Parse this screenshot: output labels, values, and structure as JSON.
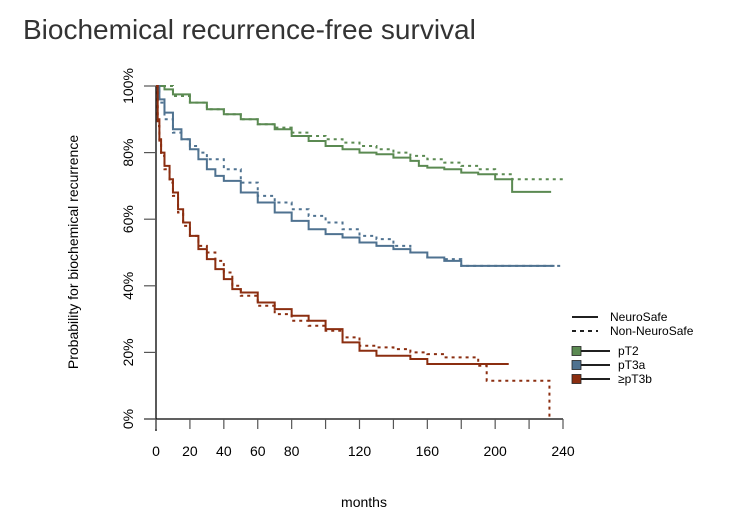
{
  "chart_data": {
    "type": "line",
    "title": "Biochemical recurrence-free survival",
    "xlabel": "months",
    "ylabel": "Probability for biochemical recurrence",
    "xlim": [
      0,
      240
    ],
    "ylim": [
      0,
      100
    ],
    "x_ticks": [
      0,
      20,
      40,
      60,
      80,
      100,
      120,
      140,
      160,
      180,
      200,
      220,
      240
    ],
    "x_tick_labels": [
      "0",
      "20",
      "40",
      "60",
      "80",
      "",
      "120",
      "",
      "160",
      "",
      "200",
      "",
      "240"
    ],
    "y_ticks": [
      0,
      20,
      40,
      60,
      80,
      100
    ],
    "y_tick_labels": [
      "0%",
      "20%",
      "40%",
      "60%",
      "80%",
      "100%"
    ],
    "grid": false,
    "legend_position": "right",
    "legend": {
      "linetypes": [
        {
          "label": "NeuroSafe",
          "style": "solid"
        },
        {
          "label": "Non-NeuroSafe",
          "style": "dashed"
        }
      ],
      "groups": [
        {
          "label": "pT2",
          "color": "#5b8a52"
        },
        {
          "label": "pT3a",
          "color": "#4f7290"
        },
        {
          "label": "≥pT3b",
          "color": "#8b2e10"
        }
      ]
    },
    "series": [
      {
        "name": "pT2 NeuroSafe",
        "group": "pT2",
        "style": "solid",
        "color": "#5b8a52",
        "x": [
          0,
          5,
          10,
          20,
          30,
          40,
          50,
          60,
          70,
          80,
          90,
          100,
          110,
          120,
          130,
          140,
          150,
          155,
          160,
          170,
          180,
          190,
          200,
          210,
          210,
          233
        ],
        "y": [
          100,
          99,
          97.5,
          95,
          93,
          91.5,
          90,
          88.5,
          87,
          85,
          83.5,
          82,
          81,
          80,
          79.5,
          78.5,
          77.5,
          76,
          75.5,
          75,
          74,
          73.5,
          72,
          72,
          68.2,
          68.2
        ]
      },
      {
        "name": "pT2 Non-NeuroSafe",
        "group": "pT2",
        "style": "dashed",
        "color": "#5b8a52",
        "x": [
          0,
          10,
          20,
          30,
          40,
          50,
          60,
          70,
          80,
          90,
          100,
          110,
          120,
          130,
          140,
          150,
          160,
          170,
          180,
          190,
          200,
          210,
          240
        ],
        "y": [
          100,
          97,
          95,
          93,
          91.5,
          90,
          88.5,
          87.5,
          86,
          85,
          84,
          83,
          82,
          81,
          80,
          79,
          78,
          77,
          76,
          75,
          73.5,
          72,
          72
        ]
      },
      {
        "name": "pT3a NeuroSafe",
        "group": "pT3a",
        "style": "solid",
        "color": "#4f7290",
        "x": [
          0,
          2,
          5,
          10,
          15,
          20,
          25,
          30,
          35,
          40,
          50,
          60,
          70,
          80,
          90,
          100,
          110,
          120,
          130,
          140,
          150,
          160,
          170,
          180,
          180,
          235
        ],
        "y": [
          100,
          96,
          92,
          87,
          84,
          81,
          78,
          75,
          73,
          71.5,
          68,
          65,
          62,
          59.5,
          57,
          55.5,
          54.5,
          53,
          52,
          51,
          50,
          48.5,
          47.5,
          47.5,
          46,
          46
        ]
      },
      {
        "name": "pT3a Non-NeuroSafe",
        "group": "pT3a",
        "style": "dashed",
        "color": "#4f7290",
        "x": [
          0,
          2,
          5,
          10,
          15,
          20,
          25,
          30,
          40,
          50,
          60,
          70,
          80,
          90,
          100,
          110,
          120,
          130,
          140,
          150,
          160,
          170,
          180,
          240
        ],
        "y": [
          100,
          95,
          90,
          86,
          84,
          82,
          80,
          78,
          75,
          71,
          67,
          65,
          63,
          61,
          59,
          57,
          55,
          54,
          52,
          50,
          48.5,
          48,
          46,
          46
        ]
      },
      {
        "name": "≥pT3b NeuroSafe",
        "group": "≥pT3b",
        "style": "solid",
        "color": "#8b2e10",
        "x": [
          0,
          1,
          2,
          3,
          5,
          8,
          10,
          13,
          16,
          20,
          25,
          30,
          35,
          40,
          45,
          50,
          60,
          70,
          80,
          90,
          100,
          110,
          120,
          130,
          140,
          150,
          160,
          170,
          180,
          190,
          200,
          208
        ],
        "y": [
          100,
          90,
          84,
          80,
          76,
          72,
          68,
          63,
          59,
          55,
          51,
          48,
          45,
          42,
          39,
          38,
          35,
          33,
          31,
          29.5,
          27,
          23,
          20.5,
          19,
          19,
          18,
          16.5,
          16.5,
          16.5,
          16.5,
          16.5,
          16.5
        ]
      },
      {
        "name": "≥pT3b Non-NeuroSafe",
        "group": "≥pT3b",
        "style": "dashed",
        "color": "#8b2e10",
        "x": [
          0,
          1,
          2,
          3,
          5,
          8,
          10,
          13,
          16,
          20,
          25,
          30,
          35,
          40,
          45,
          50,
          60,
          70,
          80,
          90,
          100,
          110,
          120,
          130,
          140,
          150,
          160,
          170,
          180,
          190,
          195,
          200,
          230,
          232,
          232
        ],
        "y": [
          100,
          88,
          83,
          79,
          75,
          71,
          67,
          62,
          58,
          55,
          52,
          50,
          47.5,
          44,
          40,
          37,
          34,
          31.5,
          29.5,
          28,
          26.5,
          24.5,
          22,
          21.5,
          21,
          20,
          19.5,
          18.5,
          18.5,
          16,
          11.5,
          11.5,
          11.5,
          11.5,
          0
        ]
      }
    ]
  }
}
